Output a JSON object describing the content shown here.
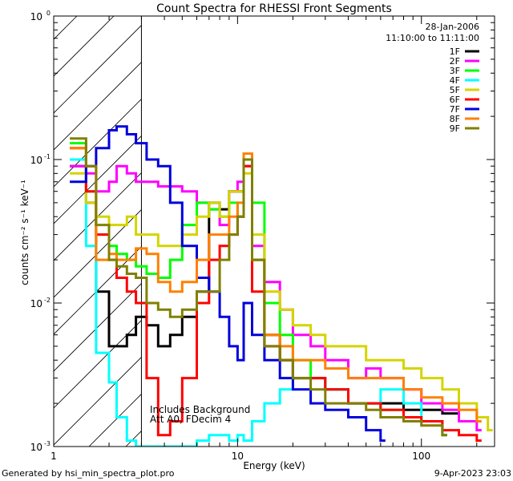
{
  "chart_data": {
    "type": "line",
    "title": "Count Spectra for RHESSI Front Segments",
    "xlabel": "Energy (keV)",
    "ylabel": "counts cm⁻² s⁻¹ keV⁻¹",
    "x_scale": "log",
    "y_scale": "log",
    "xlim": [
      1,
      250
    ],
    "ylim": [
      0.001,
      1
    ],
    "x_tick_labels": [
      {
        "value": 1,
        "label": "1"
      },
      {
        "value": 10,
        "label": "10"
      },
      {
        "value": 100,
        "label": "100"
      }
    ],
    "y_tick_labels": [
      {
        "value": 0.001,
        "base": "10",
        "exp": "-3"
      },
      {
        "value": 0.01,
        "base": "10",
        "exp": "-2"
      },
      {
        "value": 0.1,
        "base": "10",
        "exp": "-1"
      },
      {
        "value": 1,
        "base": "10",
        "exp": "0"
      }
    ],
    "date": "28-Jan-2006",
    "time_range": "11:10:00 to 11:11:00",
    "annotations": [
      "Includes Background",
      "Att A0, FDecim 4"
    ],
    "hatched_region_keV": [
      1,
      3
    ],
    "legend_position": "top-right",
    "series": [
      {
        "name": "1F",
        "color": "#000000",
        "x": [
          1.3,
          1.5,
          1.7,
          2.0,
          2.2,
          2.5,
          2.8,
          3.2,
          3.7,
          4.3,
          5.0,
          6.0,
          7.0,
          8.0,
          9.0,
          10.0,
          10.8,
          12,
          14,
          17,
          20,
          25,
          30,
          40,
          50,
          60,
          80,
          100,
          130,
          160
        ],
        "values": [
          0.09,
          0.05,
          0.012,
          0.005,
          0.005,
          0.006,
          0.008,
          0.007,
          0.005,
          0.006,
          0.008,
          0.012,
          0.05,
          0.045,
          0.06,
          0.06,
          0.1,
          0.02,
          0.006,
          0.004,
          0.003,
          0.003,
          0.0025,
          0.002,
          0.002,
          0.002,
          0.0018,
          0.0018,
          0.0017,
          0.0015
        ]
      },
      {
        "name": "2F",
        "color": "#ff00ff",
        "x": [
          1.3,
          1.5,
          1.7,
          2.0,
          2.2,
          2.5,
          2.8,
          3.2,
          3.7,
          4.3,
          5.0,
          6.0,
          7.0,
          8.0,
          9.0,
          10.0,
          10.8,
          12,
          14,
          17,
          20,
          25,
          30,
          40,
          50,
          60,
          80,
          100,
          130,
          160,
          200
        ],
        "values": [
          0.09,
          0.08,
          0.06,
          0.07,
          0.09,
          0.08,
          0.07,
          0.07,
          0.065,
          0.065,
          0.06,
          0.05,
          0.045,
          0.035,
          0.06,
          0.07,
          0.09,
          0.025,
          0.014,
          0.009,
          0.006,
          0.005,
          0.004,
          0.003,
          0.0035,
          0.003,
          0.0025,
          0.002,
          0.0018,
          0.0015,
          0.0013
        ]
      },
      {
        "name": "3F",
        "color": "#00ff00",
        "x": [
          1.3,
          1.5,
          1.7,
          2.0,
          2.2,
          2.5,
          2.8,
          3.2,
          3.7,
          4.3,
          5.0,
          6.0,
          7.0,
          8.0,
          9.0,
          10.0,
          10.8,
          12,
          14,
          17,
          20,
          25,
          30,
          40,
          50,
          60,
          80,
          100,
          130
        ],
        "values": [
          0.13,
          0.06,
          0.03,
          0.025,
          0.022,
          0.02,
          0.018,
          0.016,
          0.015,
          0.02,
          0.035,
          0.05,
          0.045,
          0.04,
          0.05,
          0.04,
          0.1,
          0.05,
          0.01,
          0.006,
          0.004,
          0.003,
          0.0025,
          0.002,
          0.002,
          0.0018,
          0.0016,
          0.0015,
          0.0012
        ]
      },
      {
        "name": "4F",
        "color": "#00ffff",
        "x": [
          1.3,
          1.5,
          1.7,
          2.0,
          2.2,
          2.5,
          2.8,
          3.2,
          3.7,
          4.3,
          5.0,
          6.0,
          7.0,
          8.0,
          9.0,
          10.0,
          10.8,
          12,
          14,
          17,
          20,
          25,
          30,
          40,
          50,
          60,
          80,
          100,
          130
        ],
        "values": [
          0.1,
          0.025,
          0.0045,
          0.0028,
          0.0016,
          0.0011,
          0.001,
          0.001,
          0.001,
          0.001,
          0.001,
          0.0011,
          0.0012,
          0.0012,
          0.0011,
          0.0012,
          0.0011,
          0.0015,
          0.002,
          0.0025,
          0.003,
          0.003,
          0.0025,
          0.002,
          0.002,
          0.0025,
          0.002,
          0.0015,
          0.0012
        ]
      },
      {
        "name": "5F",
        "color": "#d4d400",
        "x": [
          1.3,
          1.5,
          1.7,
          2.0,
          2.2,
          2.5,
          2.8,
          3.2,
          3.7,
          4.3,
          5.0,
          6.0,
          7.0,
          8.0,
          9.0,
          10.0,
          10.8,
          12,
          14,
          17,
          20,
          25,
          30,
          40,
          50,
          60,
          80,
          100,
          130,
          160,
          200,
          230
        ],
        "values": [
          0.08,
          0.05,
          0.04,
          0.035,
          0.035,
          0.04,
          0.03,
          0.03,
          0.025,
          0.025,
          0.03,
          0.04,
          0.05,
          0.04,
          0.06,
          0.06,
          0.08,
          0.03,
          0.012,
          0.009,
          0.007,
          0.006,
          0.005,
          0.005,
          0.004,
          0.004,
          0.0035,
          0.003,
          0.0025,
          0.002,
          0.0016,
          0.0013
        ]
      },
      {
        "name": "6F",
        "color": "#ff0000",
        "x": [
          1.3,
          1.5,
          1.7,
          2.0,
          2.2,
          2.5,
          2.8,
          3.2,
          3.7,
          4.3,
          5.0,
          6.0,
          7.0,
          8.0,
          9.0,
          10.0,
          10.8,
          12,
          14,
          17,
          20,
          25,
          30,
          40,
          50,
          60,
          80,
          100,
          130,
          160,
          200
        ],
        "values": [
          0.12,
          0.06,
          0.03,
          0.02,
          0.015,
          0.012,
          0.01,
          0.003,
          0.0012,
          0.0015,
          0.003,
          0.01,
          0.02,
          0.025,
          0.03,
          0.04,
          0.09,
          0.012,
          0.005,
          0.004,
          0.003,
          0.003,
          0.0025,
          0.002,
          0.002,
          0.0018,
          0.0016,
          0.0015,
          0.0013,
          0.0012,
          0.0011
        ]
      },
      {
        "name": "7F",
        "color": "#0000dd",
        "x": [
          1.3,
          1.5,
          1.7,
          2.0,
          2.2,
          2.5,
          2.8,
          3.2,
          3.7,
          4.3,
          5.0,
          6.0,
          7.0,
          8.0,
          9.0,
          10.0,
          10.8,
          12,
          14,
          17,
          20,
          25,
          30,
          40,
          50,
          60
        ],
        "values": [
          0.07,
          0.09,
          0.12,
          0.16,
          0.17,
          0.15,
          0.13,
          0.1,
          0.09,
          0.05,
          0.025,
          0.015,
          0.012,
          0.008,
          0.005,
          0.004,
          0.01,
          0.006,
          0.004,
          0.003,
          0.0025,
          0.002,
          0.0018,
          0.0016,
          0.0013,
          0.0011
        ]
      },
      {
        "name": "8F",
        "color": "#ff8000",
        "x": [
          1.3,
          1.5,
          1.7,
          2.0,
          2.2,
          2.5,
          2.8,
          3.2,
          3.7,
          4.3,
          5.0,
          6.0,
          7.0,
          8.0,
          9.0,
          10.0,
          10.8,
          12,
          14,
          17,
          20,
          25,
          30,
          40,
          50,
          60,
          80,
          100,
          130,
          160,
          200
        ],
        "values": [
          0.12,
          0.09,
          0.02,
          0.022,
          0.02,
          0.02,
          0.024,
          0.022,
          0.014,
          0.012,
          0.014,
          0.02,
          0.03,
          0.03,
          0.04,
          0.05,
          0.11,
          0.02,
          0.006,
          0.005,
          0.004,
          0.004,
          0.0035,
          0.003,
          0.003,
          0.003,
          0.0025,
          0.0022,
          0.002,
          0.0018,
          0.0015
        ]
      },
      {
        "name": "9F",
        "color": "#808000",
        "x": [
          1.3,
          1.5,
          1.7,
          2.0,
          2.2,
          2.5,
          2.8,
          3.2,
          3.7,
          4.3,
          5.0,
          6.0,
          7.0,
          8.0,
          9.0,
          10.0,
          10.8,
          12,
          14,
          17,
          20,
          25,
          30,
          40,
          50,
          60,
          80,
          100,
          130
        ],
        "values": [
          0.14,
          0.09,
          0.035,
          0.02,
          0.018,
          0.016,
          0.015,
          0.01,
          0.009,
          0.008,
          0.009,
          0.012,
          0.012,
          0.02,
          0.03,
          0.04,
          0.1,
          0.02,
          0.005,
          0.004,
          0.003,
          0.0025,
          0.002,
          0.002,
          0.0018,
          0.0016,
          0.0015,
          0.0014,
          0.0012
        ]
      }
    ]
  },
  "footer": {
    "generated_by": "Generated by hsi_min_spectra_plot.pro",
    "timestamp": "9-Apr-2023 23:03"
  }
}
